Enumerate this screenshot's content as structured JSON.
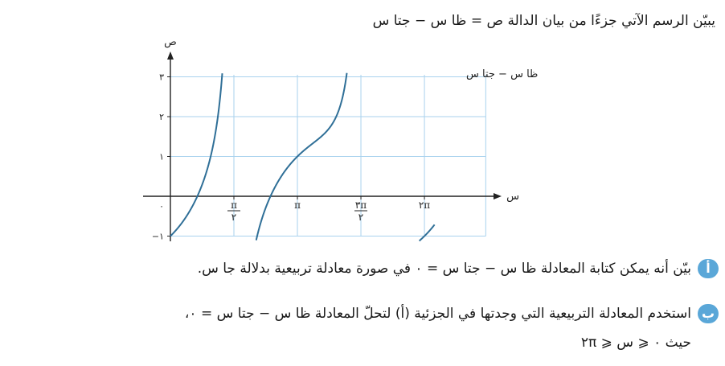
{
  "intro": "يبيّن الرسم الآتي جزءًا من بيان الدالة ص = ظا س − جتا س",
  "chart_data": {
    "type": "line",
    "function": "tan x − cos x",
    "xlabel": "س",
    "ylabel": "ص",
    "curve_label": "ص = ظا س − جتا س",
    "xlim": [
      -0.3,
      7.1
    ],
    "ylim": [
      -1,
      3
    ],
    "x_tick_labels": [
      {
        "value": 1.5708,
        "num": "π",
        "den": "٢"
      },
      {
        "value": 3.1416,
        "label": "π"
      },
      {
        "value": 4.7124,
        "num": "٣π",
        "den": "٢"
      },
      {
        "value": 6.2832,
        "label": "٢π"
      }
    ],
    "y_tick_labels": [
      {
        "value": 3,
        "label": "٣"
      },
      {
        "value": 2,
        "label": "٢"
      },
      {
        "value": 1,
        "label": "١"
      },
      {
        "value": -1,
        "label": "−١"
      }
    ],
    "origin_label": "٠",
    "grid": true
  },
  "questions": [
    {
      "badge": "أ",
      "text": "بيّن أنه يمكن كتابة المعادلة ظا س − جتا س = ٠ في صورة معادلة تربيعية بدلالة جا س."
    },
    {
      "badge": "ب",
      "text": "استخدم المعادلة التربيعية التي وجدتها في الجزئية (أ) لتحلّ المعادلة ظا س − جتا س = ٠،",
      "condition": "حيث ٠ ⩽ س ⩽ ٢π"
    }
  ]
}
